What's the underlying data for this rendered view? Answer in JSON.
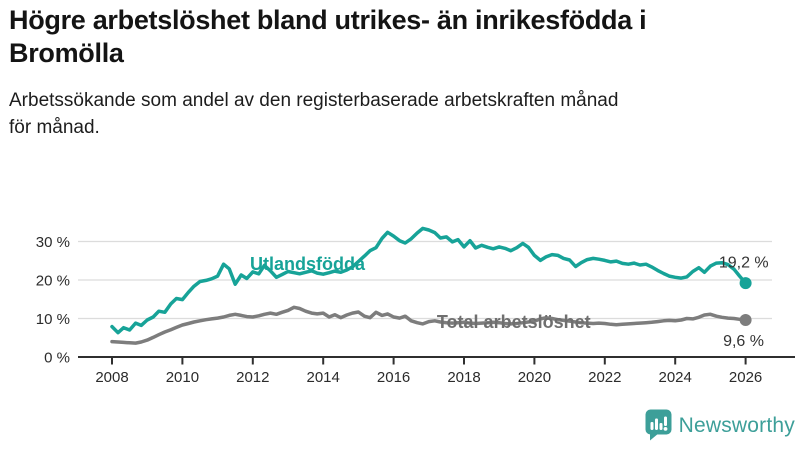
{
  "header": {
    "title_line1": "Högre arbetslöshet bland utrikes- än inrikesfödda i",
    "title_line2": "Bromölla",
    "subtitle_line1": "Arbetssökande som andel av den registerbaserade arbetskraften månad",
    "subtitle_line2": "för månad."
  },
  "footer": {
    "brand": "Newsworthy",
    "logo_icon": "bar-chart-speech-bubble-icon",
    "brand_color": "#3D9F99"
  },
  "colors": {
    "accent_teal": "#17A398",
    "line_gray": "#7D7D7D",
    "grid": "#DCDCDC",
    "axis": "#2F2F2F",
    "axis_text": "#2B2B2B",
    "value_label": "#333333"
  },
  "chart_data": {
    "type": "line",
    "title": "Högre arbetslöshet bland utrikes- än inrikesfödda i Bromölla",
    "subtitle": "Arbetssökande som andel av den registerbaserade arbetskraften månad för månad.",
    "xlabel": "",
    "ylabel": "",
    "y_unit": "%",
    "grid": "horizontal",
    "legend_position": "inline-labels",
    "xlim": [
      2007.5,
      2027.4
    ],
    "ylim": [
      0,
      39
    ],
    "x_ticks": [
      2008,
      2010,
      2012,
      2014,
      2016,
      2018,
      2020,
      2022,
      2024,
      2026
    ],
    "x_tick_labels": [
      "2008",
      "2010",
      "2012",
      "2014",
      "2016",
      "2018",
      "2020",
      "2022",
      "2024",
      "2026"
    ],
    "y_ticks": [
      0,
      10,
      20,
      30
    ],
    "y_tick_labels": [
      "0 %",
      "10 %",
      "20 %",
      "30 %"
    ],
    "x": [
      2008,
      2008.17,
      2008.33,
      2008.5,
      2008.67,
      2008.83,
      2009,
      2009.17,
      2009.33,
      2009.5,
      2009.67,
      2009.83,
      2010,
      2010.17,
      2010.33,
      2010.5,
      2010.67,
      2010.83,
      2011,
      2011.17,
      2011.33,
      2011.5,
      2011.67,
      2011.83,
      2012,
      2012.17,
      2012.33,
      2012.5,
      2012.67,
      2012.83,
      2013,
      2013.17,
      2013.33,
      2013.5,
      2013.67,
      2013.83,
      2014,
      2014.17,
      2014.33,
      2014.5,
      2014.67,
      2014.83,
      2015,
      2015.17,
      2015.33,
      2015.5,
      2015.67,
      2015.83,
      2016,
      2016.17,
      2016.33,
      2016.5,
      2016.67,
      2016.83,
      2017,
      2017.17,
      2017.33,
      2017.5,
      2017.67,
      2017.83,
      2018,
      2018.17,
      2018.33,
      2018.5,
      2018.67,
      2018.83,
      2019,
      2019.17,
      2019.33,
      2019.5,
      2019.67,
      2019.83,
      2020,
      2020.17,
      2020.33,
      2020.5,
      2020.67,
      2020.83,
      2021,
      2021.17,
      2021.33,
      2021.5,
      2021.67,
      2021.83,
      2022,
      2022.17,
      2022.33,
      2022.5,
      2022.67,
      2022.83,
      2023,
      2023.17,
      2023.33,
      2023.5,
      2023.67,
      2023.83,
      2024,
      2024.17,
      2024.33,
      2024.5,
      2024.67,
      2024.83,
      2025,
      2025.17,
      2025.33,
      2025.5,
      2025.67,
      2025.83,
      2026
    ],
    "series": [
      {
        "name": "Utlandsfödda",
        "color": "#17A398",
        "label_color": "#17A398",
        "end_value": 19.2,
        "end_label": "19,2 %",
        "name_label_anchor": {
          "x": 2011.92,
          "y": 22.6
        },
        "end_label_anchor": {
          "x": 2025.24,
          "y": 23.3
        },
        "values": [
          7.9,
          6.3,
          7.6,
          7.0,
          8.8,
          8.2,
          9.6,
          10.4,
          11.9,
          11.6,
          13.8,
          15.2,
          14.9,
          16.8,
          18.4,
          19.6,
          19.9,
          20.3,
          21.0,
          24.1,
          22.9,
          18.9,
          21.3,
          20.4,
          22.1,
          21.6,
          23.8,
          22.4,
          20.7,
          21.4,
          22.2,
          21.9,
          21.6,
          22.0,
          22.4,
          21.8,
          21.5,
          21.9,
          22.3,
          22.0,
          22.6,
          23.4,
          24.8,
          26.2,
          27.6,
          28.4,
          30.8,
          32.4,
          31.4,
          30.2,
          29.6,
          30.7,
          32.2,
          33.4,
          33.0,
          32.3,
          30.9,
          31.2,
          29.9,
          30.5,
          28.6,
          30.2,
          28.3,
          29.0,
          28.5,
          28.1,
          28.6,
          28.2,
          27.6,
          28.4,
          29.5,
          28.5,
          26.4,
          25.1,
          26.0,
          26.6,
          26.4,
          25.6,
          25.2,
          23.5,
          24.5,
          25.3,
          25.6,
          25.4,
          25.1,
          24.7,
          24.9,
          24.3,
          24.1,
          24.4,
          23.9,
          24.1,
          23.4,
          22.5,
          21.7,
          21.0,
          20.7,
          20.5,
          20.8,
          22.2,
          23.2,
          22.0,
          23.6,
          24.4,
          24.5,
          24.0,
          22.8,
          21.0,
          19.2
        ]
      },
      {
        "name": "Total arbetslöshet",
        "color": "#7D7D7D",
        "label_color": "#6F6F6F",
        "end_value": 9.6,
        "end_label": "9,6 %",
        "name_label_anchor": {
          "x": 2017.23,
          "y": 7.5
        },
        "end_label_anchor": {
          "x": 2025.36,
          "y": 2.9
        },
        "values": [
          4.0,
          3.9,
          3.8,
          3.7,
          3.6,
          3.9,
          4.4,
          5.1,
          5.8,
          6.5,
          7.1,
          7.7,
          8.3,
          8.7,
          9.1,
          9.4,
          9.7,
          9.9,
          10.1,
          10.4,
          10.8,
          11.1,
          10.8,
          10.5,
          10.4,
          10.7,
          11.1,
          11.4,
          11.1,
          11.6,
          12.1,
          12.9,
          12.6,
          11.9,
          11.4,
          11.2,
          11.4,
          10.4,
          11.0,
          10.2,
          10.9,
          11.4,
          11.7,
          10.6,
          10.2,
          11.6,
          10.8,
          11.2,
          10.4,
          10.1,
          10.6,
          9.4,
          8.9,
          8.6,
          9.2,
          9.4,
          9.1,
          8.9,
          8.8,
          8.9,
          9.0,
          8.8,
          8.7,
          8.8,
          8.9,
          9.0,
          8.9,
          8.7,
          8.6,
          8.7,
          8.9,
          9.1,
          9.3,
          9.9,
          10.2,
          10.0,
          9.7,
          9.5,
          9.3,
          9.1,
          8.9,
          8.8,
          8.7,
          8.8,
          8.7,
          8.5,
          8.4,
          8.5,
          8.6,
          8.7,
          8.8,
          8.9,
          9.0,
          9.2,
          9.4,
          9.5,
          9.4,
          9.6,
          10.0,
          9.9,
          10.3,
          10.9,
          11.1,
          10.6,
          10.3,
          10.1,
          10.0,
          9.8,
          9.6
        ]
      }
    ]
  }
}
